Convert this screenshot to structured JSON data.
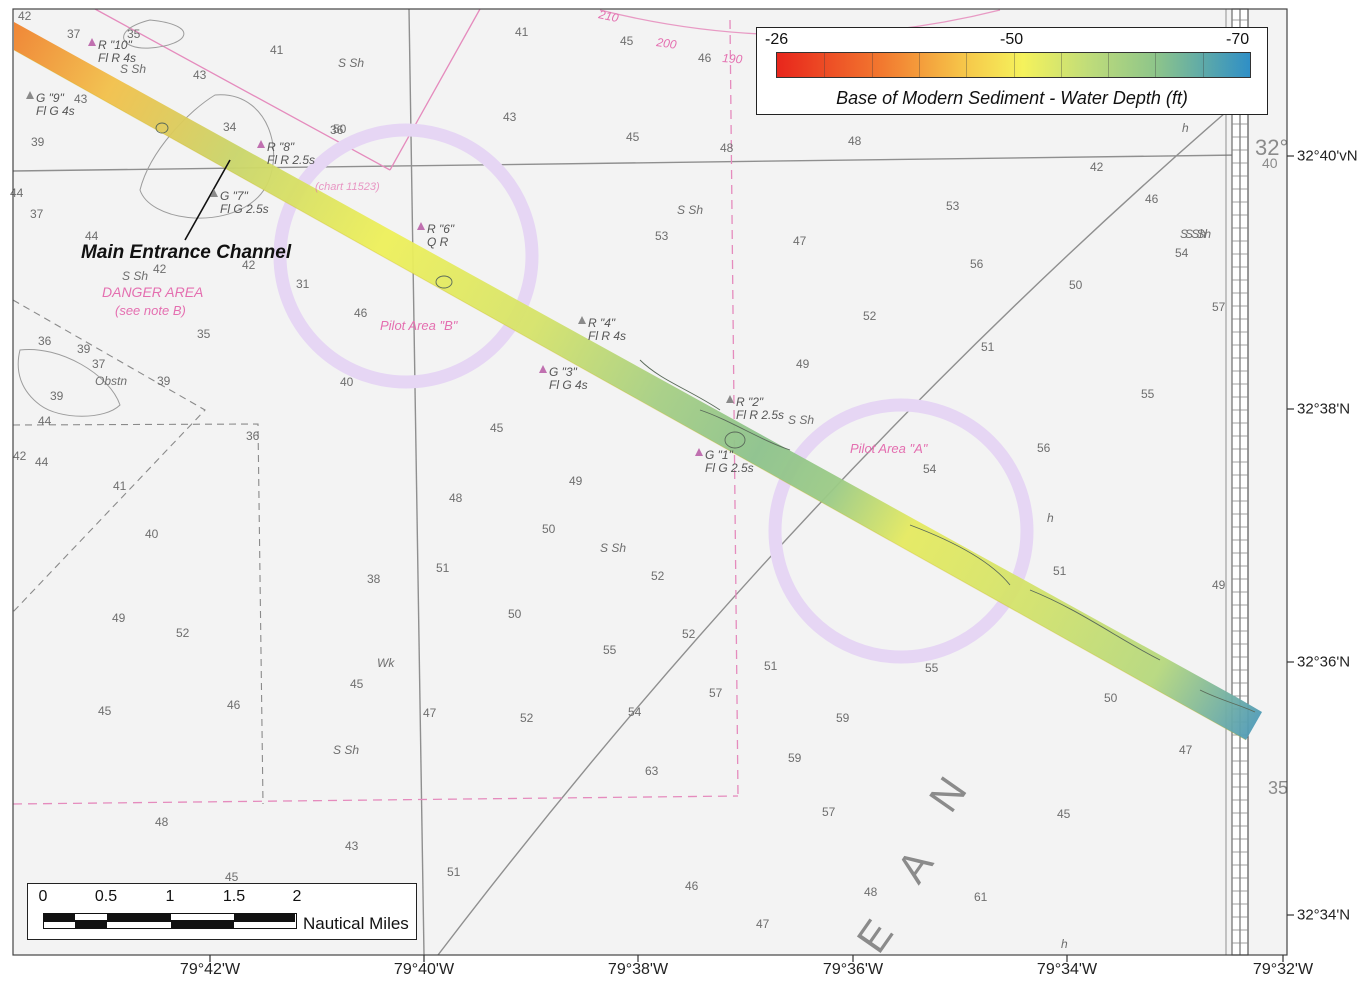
{
  "legend": {
    "ticks": [
      "-26",
      "-50",
      "-70"
    ],
    "title": "Base of Modern Sediment - Water Depth (ft)"
  },
  "scale_bar": {
    "ticks": [
      "0",
      "0.5",
      "1",
      "1.5",
      "2"
    ],
    "units": "Nautical Miles"
  },
  "longitude_labels": [
    "79°42'W",
    "79°40'W",
    "79°38'W",
    "79°36'W",
    "79°34'W",
    "79°32'W"
  ],
  "latitude_labels": [
    "32°40'vN",
    "32°38'N",
    "32°36'N",
    "32°34'N"
  ],
  "callout": "Main Entrance Channel",
  "chart_labels": {
    "danger_area": "DANGER AREA",
    "see_note": "(see note B)",
    "chart_ref": "(chart 11523)",
    "pilot_b": "Pilot Area \"B\"",
    "pilot_a": "Pilot Area \"A\"",
    "ocean_letters": [
      "N",
      "A",
      "E"
    ],
    "corner_lat": "32°",
    "corner_40": "40",
    "corner_35": "35"
  },
  "aids": [
    {
      "name": "R \"10\"",
      "light": "Fl R 4s"
    },
    {
      "name": "G \"9\"",
      "light": "Fl G 4s"
    },
    {
      "name": "R \"8\"",
      "light": "Fl R 2.5s"
    },
    {
      "name": "G \"7\"",
      "light": "Fl G 2.5s"
    },
    {
      "name": "R \"6\"",
      "light": "Q R"
    },
    {
      "name": "R \"4\"",
      "light": "Fl R 4s"
    },
    {
      "name": "G \"3\"",
      "light": "Fl G 4s"
    },
    {
      "name": "R \"2\"",
      "light": "Fl R 2.5s"
    },
    {
      "name": "G \"1\"",
      "light": "Fl G 2.5s"
    }
  ],
  "bottom_notes": [
    "S Sh",
    "S Sh",
    "S Sh",
    "S Sh",
    "S Sh",
    "S Sh",
    "S Sh",
    "S Sh",
    "S Sh",
    "Obstn",
    "Wk",
    "h",
    "h",
    "h"
  ],
  "compass_labels": [
    "210",
    "200",
    "190"
  ],
  "soundings": [
    "42",
    "37",
    "35",
    "41",
    "45",
    "43",
    "46",
    "41",
    "43",
    "34",
    "36",
    "39",
    "45",
    "48",
    "48",
    "42",
    "46",
    "54",
    "53",
    "53",
    "47",
    "52",
    "56",
    "50",
    "57",
    "51",
    "49",
    "55",
    "56",
    "54",
    "45",
    "48",
    "49",
    "50",
    "44",
    "42",
    "41",
    "44",
    "39",
    "49",
    "52",
    "46",
    "45",
    "45",
    "47",
    "51",
    "52",
    "50",
    "55",
    "52",
    "52",
    "54",
    "57",
    "51",
    "59",
    "59",
    "57",
    "55",
    "51",
    "49",
    "50",
    "47",
    "45",
    "61",
    "63",
    "46",
    "51",
    "48",
    "47",
    "48",
    "45",
    "43",
    "38",
    "40",
    "35",
    "36",
    "39",
    "44",
    "39",
    "42",
    "36",
    "40",
    "37",
    "46",
    "50",
    "43",
    "42",
    "44",
    "31",
    "37"
  ],
  "colors": {
    "ramp_low": "#e8261c",
    "ramp_mid": "#f5f25c",
    "ramp_high": "#2f8fc6",
    "pilot_circle": "#e6d6f4",
    "chart_magenta": "#e46fb0",
    "grid_gray": "#9a9a9a"
  }
}
